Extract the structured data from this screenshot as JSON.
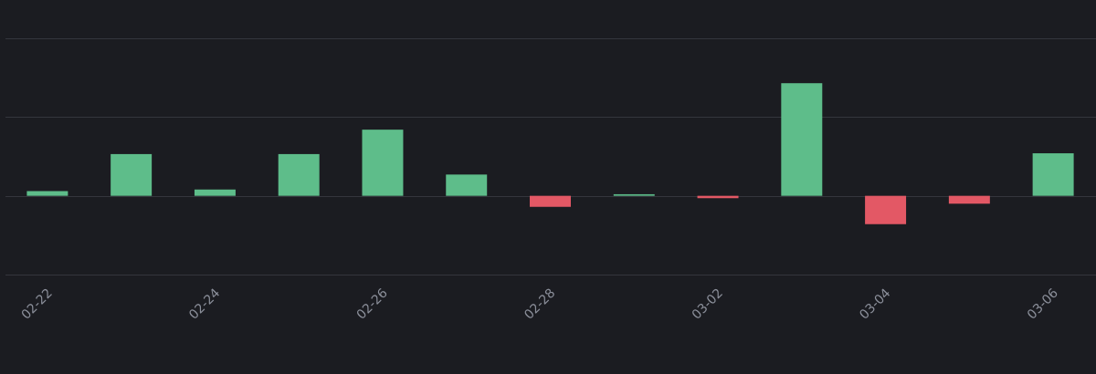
{
  "chart_data": {
    "type": "bar",
    "categories": [
      "02-22",
      null,
      "02-24",
      null,
      "02-26",
      null,
      "02-28",
      null,
      "03-02",
      null,
      "03-04",
      null,
      "03-06"
    ],
    "values": [
      0.06,
      0.53,
      0.08,
      0.53,
      0.84,
      0.27,
      -0.14,
      0.02,
      -0.03,
      1.43,
      -0.36,
      -0.1,
      0.54
    ],
    "color": "#5ebd8a",
    "negative_color": "#e35865",
    "ylim": [
      -1,
      2
    ],
    "yticks": [
      -1,
      0,
      1,
      2
    ],
    "grid": true
  }
}
